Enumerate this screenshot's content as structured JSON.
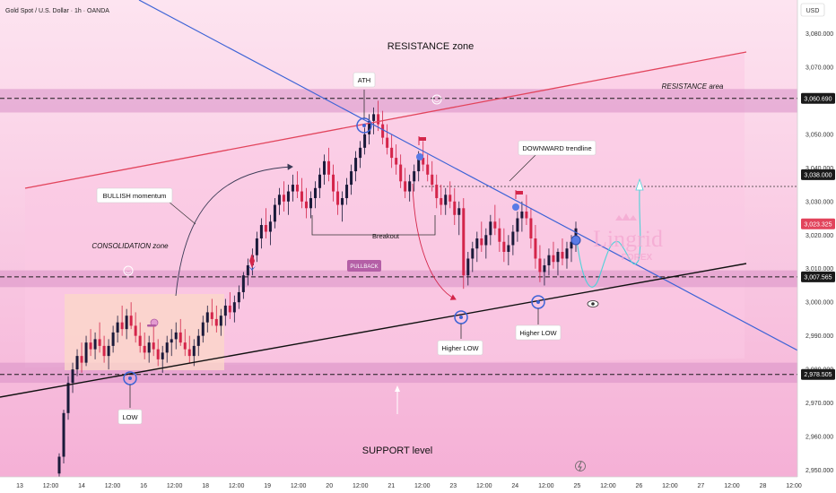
{
  "header": {
    "symbol_title": "Gold Spot / U.S. Dollar · 1h · OANDA",
    "currency": "USD"
  },
  "chart_data": {
    "type": "candlestick",
    "ylim": [
      2948,
      3090
    ],
    "yticks": [
      {
        "value": 3080,
        "label": "3,080.000"
      },
      {
        "value": 3070,
        "label": "3,070.000"
      },
      {
        "value": 3050,
        "label": "3,050.000"
      },
      {
        "value": 3040,
        "label": "3,040.000"
      },
      {
        "value": 3030,
        "label": "3,030.000"
      },
      {
        "value": 3020,
        "label": "3,020.000"
      },
      {
        "value": 3010,
        "label": "3,010.000"
      },
      {
        "value": 3000,
        "label": "3,000.000"
      },
      {
        "value": 2990,
        "label": "2,990.000"
      },
      {
        "value": 2980,
        "label": "2,980.000"
      },
      {
        "value": 2970,
        "label": "2,970.000"
      },
      {
        "value": 2960,
        "label": "2,960.000"
      },
      {
        "value": 2950,
        "label": "2,950.000"
      }
    ],
    "price_tags": [
      {
        "value": 3060.69,
        "label": "3,060.690",
        "color": "#1a1a1a"
      },
      {
        "value": 3038.0,
        "label": "3,038.000",
        "color": "#1a1a1a"
      },
      {
        "value": 3023.325,
        "label": "3,023.325",
        "color": "#e2445c"
      },
      {
        "value": 3007.565,
        "label": "3,007.565",
        "color": "#1a1a1a"
      },
      {
        "value": 2978.505,
        "label": "2,978.505",
        "color": "#1a1a1a"
      }
    ],
    "x_labels": [
      "13",
      "12:00",
      "14",
      "12:00",
      "16",
      "12:00",
      "18",
      "12:00",
      "19",
      "12:00",
      "20",
      "12:00",
      "21",
      "12:00",
      "23",
      "12:00",
      "24",
      "12:00",
      "25",
      "12:00",
      "26",
      "12:00",
      "27",
      "12:00",
      "28",
      "12:00"
    ],
    "candles": [
      [
        2949,
        2955,
        2948,
        2954
      ],
      [
        2954,
        2968,
        2952,
        2967
      ],
      [
        2967,
        2978,
        2965,
        2976
      ],
      [
        2976,
        2982,
        2973,
        2980
      ],
      [
        2980,
        2986,
        2978,
        2984
      ],
      [
        2984,
        2988,
        2979,
        2982
      ],
      [
        2982,
        2990,
        2981,
        2988
      ],
      [
        2988,
        2992,
        2984,
        2986
      ],
      [
        2986,
        2991,
        2983,
        2989
      ],
      [
        2989,
        2994,
        2985,
        2987
      ],
      [
        2987,
        2990,
        2982,
        2984
      ],
      [
        2984,
        2989,
        2980,
        2987
      ],
      [
        2987,
        2993,
        2985,
        2991
      ],
      [
        2991,
        2996,
        2988,
        2994
      ],
      [
        2994,
        2999,
        2990,
        2992
      ],
      [
        2992,
        2998,
        2989,
        2996
      ],
      [
        2996,
        3000,
        2992,
        2993
      ],
      [
        2993,
        2997,
        2988,
        2990
      ],
      [
        2990,
        2994,
        2985,
        2987
      ],
      [
        2987,
        2991,
        2983,
        2985
      ],
      [
        2985,
        2990,
        2982,
        2988
      ],
      [
        2988,
        2993,
        2984,
        2986
      ],
      [
        2986,
        2989,
        2981,
        2983
      ],
      [
        2983,
        2987,
        2979,
        2985
      ],
      [
        2985,
        2990,
        2982,
        2988
      ],
      [
        2988,
        2992,
        2984,
        2989
      ],
      [
        2989,
        2994,
        2986,
        2991
      ],
      [
        2991,
        2995,
        2987,
        2988
      ],
      [
        2988,
        2992,
        2984,
        2986
      ],
      [
        2986,
        2990,
        2982,
        2984
      ],
      [
        2984,
        2989,
        2981,
        2987
      ],
      [
        2987,
        2992,
        2984,
        2990
      ],
      [
        2990,
        2996,
        2988,
        2994
      ],
      [
        2994,
        2999,
        2991,
        2997
      ],
      [
        2997,
        3001,
        2993,
        2995
      ],
      [
        2995,
        2999,
        2991,
        2993
      ],
      [
        2993,
        2998,
        2990,
        2996
      ],
      [
        2996,
        3001,
        2993,
        2999
      ],
      [
        2999,
        3003,
        2995,
        2997
      ],
      [
        2997,
        3002,
        2994,
        3000
      ],
      [
        3000,
        3005,
        2998,
        3003
      ],
      [
        3003,
        3009,
        3001,
        3008
      ],
      [
        3008,
        3013,
        3005,
        3011
      ],
      [
        3011,
        3016,
        3008,
        3014
      ],
      [
        3014,
        3021,
        3012,
        3019
      ],
      [
        3019,
        3025,
        3016,
        3023
      ],
      [
        3023,
        3028,
        3019,
        3021
      ],
      [
        3021,
        3026,
        3017,
        3024
      ],
      [
        3024,
        3031,
        3022,
        3029
      ],
      [
        3029,
        3034,
        3026,
        3032
      ],
      [
        3032,
        3036,
        3027,
        3030
      ],
      [
        3030,
        3035,
        3026,
        3033
      ],
      [
        3033,
        3038,
        3030,
        3035
      ],
      [
        3035,
        3039,
        3031,
        3033
      ],
      [
        3033,
        3037,
        3028,
        3030
      ],
      [
        3030,
        3034,
        3025,
        3028
      ],
      [
        3028,
        3033,
        3025,
        3031
      ],
      [
        3031,
        3036,
        3028,
        3034
      ],
      [
        3034,
        3040,
        3031,
        3038
      ],
      [
        3038,
        3044,
        3035,
        3042
      ],
      [
        3042,
        3046,
        3036,
        3038
      ],
      [
        3038,
        3041,
        3030,
        3033
      ],
      [
        3033,
        3036,
        3026,
        3029
      ],
      [
        3029,
        3033,
        3024,
        3031
      ],
      [
        3031,
        3037,
        3029,
        3035
      ],
      [
        3035,
        3041,
        3032,
        3039
      ],
      [
        3039,
        3045,
        3036,
        3043
      ],
      [
        3043,
        3048,
        3040,
        3046
      ],
      [
        3046,
        3052,
        3044,
        3050
      ],
      [
        3050,
        3056,
        3047,
        3054
      ],
      [
        3054,
        3058,
        3050,
        3056
      ],
      [
        3056,
        3060,
        3051,
        3053
      ],
      [
        3053,
        3057,
        3047,
        3049
      ],
      [
        3049,
        3053,
        3044,
        3046
      ],
      [
        3046,
        3050,
        3040,
        3043
      ],
      [
        3043,
        3047,
        3038,
        3041
      ],
      [
        3041,
        3044,
        3034,
        3036
      ],
      [
        3036,
        3040,
        3031,
        3033
      ],
      [
        3033,
        3038,
        3030,
        3036
      ],
      [
        3036,
        3041,
        3033,
        3039
      ],
      [
        3039,
        3045,
        3036,
        3043
      ],
      [
        3043,
        3048,
        3039,
        3041
      ],
      [
        3041,
        3044,
        3036,
        3038
      ],
      [
        3038,
        3042,
        3033,
        3035
      ],
      [
        3035,
        3038,
        3028,
        3031
      ],
      [
        3031,
        3035,
        3026,
        3029
      ],
      [
        3029,
        3034,
        3026,
        3032
      ],
      [
        3032,
        3036,
        3028,
        3030
      ],
      [
        3030,
        3034,
        3023,
        3026
      ],
      [
        3026,
        3030,
        3020,
        3028
      ],
      [
        3028,
        3031,
        3004,
        3008
      ],
      [
        3008,
        3015,
        3005,
        3013
      ],
      [
        3013,
        3018,
        3009,
        3016
      ],
      [
        3016,
        3021,
        3012,
        3019
      ],
      [
        3019,
        3024,
        3015,
        3017
      ],
      [
        3017,
        3022,
        3013,
        3020
      ],
      [
        3020,
        3026,
        3017,
        3024
      ],
      [
        3024,
        3029,
        3020,
        3022
      ],
      [
        3022,
        3025,
        3015,
        3018
      ],
      [
        3018,
        3022,
        3012,
        3015
      ],
      [
        3015,
        3020,
        3011,
        3017
      ],
      [
        3017,
        3023,
        3014,
        3021
      ],
      [
        3021,
        3027,
        3018,
        3025
      ],
      [
        3025,
        3030,
        3021,
        3027
      ],
      [
        3027,
        3032,
        3023,
        3025
      ],
      [
        3025,
        3028,
        3016,
        3019
      ],
      [
        3019,
        3023,
        3010,
        3013
      ],
      [
        3013,
        3017,
        3006,
        3009
      ],
      [
        3009,
        3013,
        3005,
        3011
      ],
      [
        3011,
        3016,
        3008,
        3014
      ],
      [
        3014,
        3018,
        3010,
        3012
      ],
      [
        3012,
        3016,
        3008,
        3015
      ],
      [
        3015,
        3019,
        3011,
        3013
      ],
      [
        3013,
        3018,
        3010,
        3016
      ],
      [
        3016,
        3020,
        3012,
        3018
      ],
      [
        3018,
        3024,
        3015,
        3022
      ]
    ],
    "levels": [
      {
        "name": "RESISTANCE area line",
        "value": 3060.69
      },
      {
        "name": "Dotted",
        "value": 3038.0
      },
      {
        "name": "Pullback support",
        "value": 3007.565
      },
      {
        "name": "SUPPORT line",
        "value": 2978.505
      }
    ]
  },
  "annotations": {
    "resistance_zone": "RESISTANCE zone",
    "resistance_area": "RESISTANCE area",
    "ath": "ATH",
    "downward_trendline": "DOWNWARD trendline",
    "bullish_momentum": "BULLISH momentum",
    "consolidation_zone": "CONSOLIDATION zone",
    "breakout": "Breakout",
    "pullback": "PULLBACK",
    "higher_low_1": "Higher LOW",
    "higher_low_2": "Higher LOW",
    "low": "LOW",
    "support_level": "SUPPORT level",
    "brand_name": "Lingrid",
    "brand_sub": "FOREX"
  },
  "colors": {
    "background_top": "#fde0ee",
    "background_bottom": "#f7b7d9",
    "zone_fill": "#d98fc7",
    "bull_candle": "#1a1a3a",
    "bear_candle": "#d4254a",
    "trend_blue": "#3d63d6",
    "trend_red": "#e2445c",
    "support_black": "#111111",
    "consolidation_fill": "#fbd7c9"
  }
}
